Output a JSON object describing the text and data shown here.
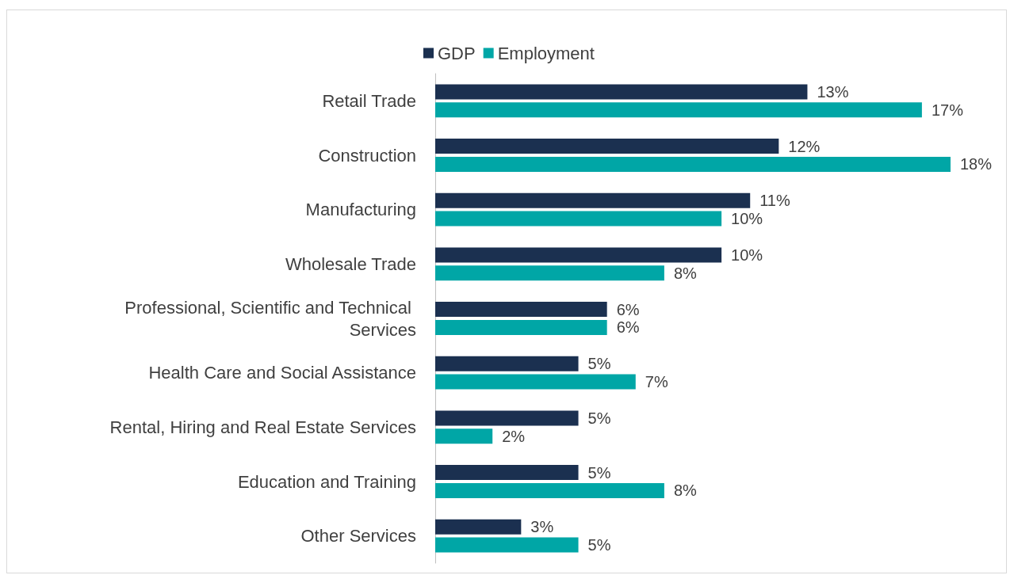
{
  "chart_data": {
    "type": "bar",
    "orientation": "horizontal",
    "categories": [
      "Retail Trade",
      "Construction",
      "Manufacturing",
      "Wholesale Trade",
      "Professional, Scientific and Technical Services",
      "Health Care and Social Assistance",
      "Rental, Hiring and Real Estate Services",
      "Education and Training",
      "Other Services"
    ],
    "series": [
      {
        "name": "GDP",
        "color": "#1b3050",
        "values": [
          13,
          12,
          11,
          10,
          6,
          5,
          5,
          5,
          3
        ],
        "value_labels": [
          "13%",
          "12%",
          "11%",
          "10%",
          "6%",
          "5%",
          "5%",
          "5%",
          "3%"
        ]
      },
      {
        "name": "Employment",
        "color": "#00a6a6",
        "values": [
          17,
          18,
          10,
          8,
          6,
          7,
          2,
          8,
          5
        ],
        "value_labels": [
          "17%",
          "18%",
          "10%",
          "8%",
          "6%",
          "7%",
          "2%",
          "8%",
          "5%"
        ]
      }
    ],
    "legend": "top",
    "grid": false,
    "tick_labels": "y"
  }
}
